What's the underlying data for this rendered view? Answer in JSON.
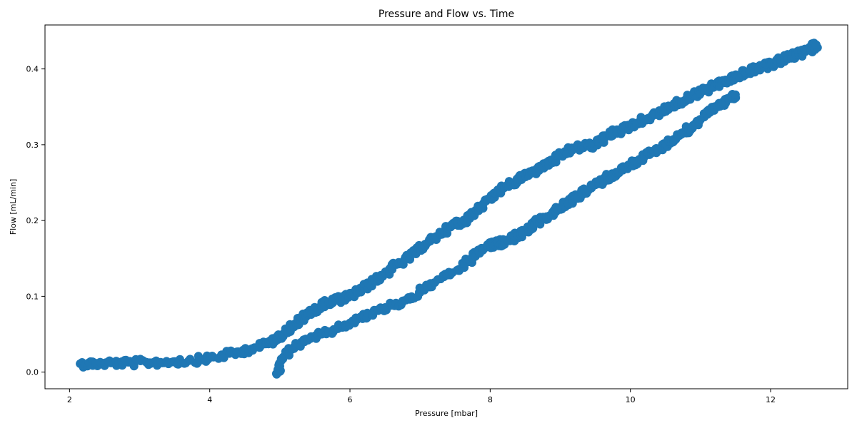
{
  "chart_data": {
    "type": "scatter",
    "title": "Pressure and Flow vs. Time",
    "xlabel": "Pressure [mbar]",
    "ylabel": "Flow [mL/min]",
    "xlim": [
      1.65,
      13.1
    ],
    "ylim": [
      -0.022,
      0.458
    ],
    "xticks": [
      2,
      4,
      6,
      8,
      10,
      12
    ],
    "xtick_labels": [
      "2",
      "4",
      "6",
      "8",
      "10",
      "12"
    ],
    "yticks": [
      0.0,
      0.1,
      0.2,
      0.3,
      0.4
    ],
    "ytick_labels": [
      "0.0",
      "0.1",
      "0.2",
      "0.3",
      "0.4"
    ],
    "grid": false,
    "marker_color": "#1f77b4",
    "series": [
      {
        "branch": "upper",
        "x": [
          2.15,
          2.3,
          2.5,
          2.7,
          2.9,
          3.1,
          3.3,
          3.5,
          3.7,
          3.9,
          4.0,
          4.2,
          4.4,
          4.6,
          4.8,
          4.9,
          5.0,
          5.1,
          5.2,
          5.3,
          5.4,
          5.5,
          5.6,
          5.7,
          5.8,
          5.9,
          6.0,
          6.1,
          6.2,
          6.3,
          6.4,
          6.5,
          6.6,
          6.7,
          6.8,
          6.9,
          7.0,
          7.1,
          7.2,
          7.3,
          7.4,
          7.5,
          7.6,
          7.7,
          7.8,
          7.9,
          8.0,
          8.1,
          8.2,
          8.3,
          8.4,
          8.5,
          8.6,
          8.7,
          8.8,
          8.9,
          9.0,
          9.1,
          9.2,
          9.3,
          9.4,
          9.5,
          9.6,
          9.7,
          9.8,
          9.9,
          10.0,
          10.1,
          10.2,
          10.3,
          10.4,
          10.5,
          10.6,
          10.7,
          10.8,
          10.9,
          11.0,
          11.1,
          11.2,
          11.3,
          11.4,
          11.5,
          11.6,
          11.7,
          11.8,
          11.9,
          12.0,
          12.1,
          12.2,
          12.3,
          12.4,
          12.5,
          12.6,
          12.65
        ],
        "y": [
          0.011,
          0.011,
          0.012,
          0.012,
          0.012,
          0.013,
          0.013,
          0.014,
          0.015,
          0.017,
          0.019,
          0.022,
          0.026,
          0.031,
          0.037,
          0.042,
          0.048,
          0.055,
          0.062,
          0.069,
          0.076,
          0.082,
          0.088,
          0.092,
          0.095,
          0.097,
          0.1,
          0.105,
          0.11,
          0.117,
          0.124,
          0.131,
          0.137,
          0.143,
          0.149,
          0.156,
          0.163,
          0.17,
          0.177,
          0.184,
          0.19,
          0.195,
          0.199,
          0.205,
          0.214,
          0.222,
          0.23,
          0.238,
          0.243,
          0.248,
          0.254,
          0.259,
          0.263,
          0.268,
          0.274,
          0.279,
          0.285,
          0.29,
          0.295,
          0.297,
          0.298,
          0.301,
          0.306,
          0.312,
          0.317,
          0.321,
          0.325,
          0.329,
          0.333,
          0.337,
          0.342,
          0.347,
          0.351,
          0.355,
          0.36,
          0.365,
          0.37,
          0.374,
          0.378,
          0.382,
          0.386,
          0.39,
          0.393,
          0.397,
          0.4,
          0.403,
          0.406,
          0.41,
          0.413,
          0.416,
          0.419,
          0.423,
          0.428,
          0.432
        ]
      },
      {
        "branch": "lower",
        "x": [
          4.95,
          5.0,
          5.05,
          5.2,
          5.4,
          5.6,
          5.8,
          6.0,
          6.2,
          6.4,
          6.6,
          6.8,
          7.0,
          7.2,
          7.4,
          7.6,
          7.7,
          7.8,
          7.9,
          8.0,
          8.1,
          8.2,
          8.3,
          8.4,
          8.5,
          8.6,
          8.7,
          8.8,
          8.9,
          9.0,
          9.1,
          9.2,
          9.3,
          9.4,
          9.5,
          9.6,
          9.7,
          9.8,
          9.9,
          10.0,
          10.1,
          10.2,
          10.3,
          10.4,
          10.5,
          10.6,
          10.7,
          10.8,
          10.9,
          11.0,
          11.1,
          11.2,
          11.3,
          11.4,
          11.5
        ],
        "y": [
          -0.002,
          0.008,
          0.02,
          0.033,
          0.042,
          0.05,
          0.057,
          0.065,
          0.073,
          0.081,
          0.088,
          0.095,
          0.105,
          0.118,
          0.128,
          0.138,
          0.147,
          0.155,
          0.162,
          0.167,
          0.17,
          0.172,
          0.176,
          0.181,
          0.186,
          0.192,
          0.199,
          0.205,
          0.211,
          0.217,
          0.223,
          0.229,
          0.235,
          0.241,
          0.247,
          0.253,
          0.258,
          0.263,
          0.268,
          0.274,
          0.279,
          0.284,
          0.289,
          0.294,
          0.3,
          0.306,
          0.312,
          0.319,
          0.326,
          0.333,
          0.34,
          0.347,
          0.354,
          0.36,
          0.366
        ]
      }
    ]
  }
}
